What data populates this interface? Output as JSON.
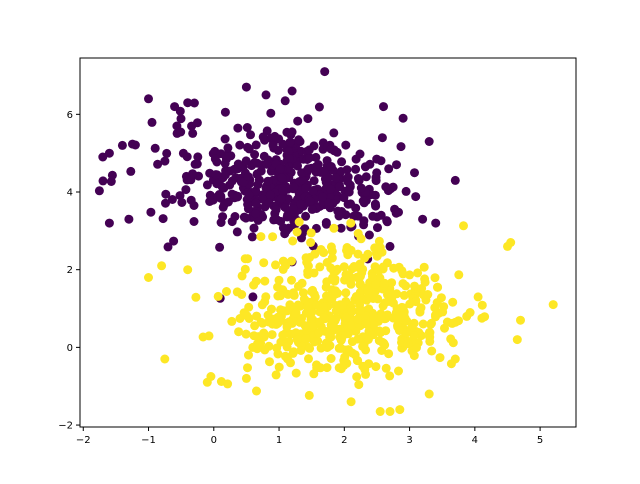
{
  "chart_data": {
    "type": "scatter",
    "title": "",
    "xlabel": "",
    "ylabel": "",
    "xlim": [
      -2.05,
      5.55
    ],
    "ylim": [
      -2.05,
      7.45
    ],
    "xticks": [
      -2,
      -1,
      0,
      1,
      2,
      3,
      4,
      5
    ],
    "yticks": [
      -2,
      0,
      2,
      4,
      6
    ],
    "grid": false,
    "legend": "none",
    "series": [
      {
        "color": "#440154",
        "clusters": [
          {
            "n": 240,
            "cx": 0.95,
            "cy": 4.2,
            "sx": 0.55,
            "sy": 0.7
          },
          {
            "n": 150,
            "cx": 1.9,
            "cy": 4.0,
            "sx": 0.5,
            "sy": 0.6
          },
          {
            "n": 90,
            "cx": 0.0,
            "cy": 4.6,
            "sx": 0.75,
            "sy": 0.8
          }
        ],
        "extra_points": [
          [
            -1.7,
            4.9
          ],
          [
            -1.6,
            5.0
          ],
          [
            -1.4,
            5.2
          ],
          [
            -1.6,
            3.2
          ],
          [
            -1.3,
            3.3
          ],
          [
            -1.0,
            6.4
          ],
          [
            -0.6,
            6.2
          ],
          [
            1.7,
            7.1
          ],
          [
            2.9,
            5.9
          ],
          [
            2.6,
            6.2
          ],
          [
            3.3,
            5.3
          ],
          [
            3.7,
            4.3
          ],
          [
            3.4,
            3.2
          ],
          [
            3.2,
            3.3
          ],
          [
            0.5,
            6.7
          ],
          [
            -0.4,
            6.3
          ],
          [
            0.8,
            6.5
          ],
          [
            1.2,
            6.6
          ],
          [
            2.7,
            2.6
          ],
          [
            1.2,
            2.2
          ],
          [
            0.6,
            1.3
          ],
          [
            2.1,
            3.1
          ]
        ]
      },
      {
        "color": "#fde725",
        "clusters": [
          {
            "n": 260,
            "cx": 2.1,
            "cy": 0.8,
            "sx": 0.55,
            "sy": 0.8
          },
          {
            "n": 130,
            "cx": 1.0,
            "cy": 0.6,
            "sx": 0.5,
            "sy": 0.7
          },
          {
            "n": 110,
            "cx": 3.0,
            "cy": 0.9,
            "sx": 0.5,
            "sy": 0.65
          },
          {
            "n": 40,
            "cx": 1.9,
            "cy": 2.4,
            "sx": 0.5,
            "sy": 0.4
          }
        ],
        "extra_points": [
          [
            5.2,
            1.1
          ],
          [
            4.7,
            0.7
          ],
          [
            4.55,
            2.7
          ],
          [
            4.5,
            2.6
          ],
          [
            4.65,
            0.2
          ],
          [
            -1.0,
            1.8
          ],
          [
            -0.75,
            -0.3
          ],
          [
            -0.4,
            2.0
          ],
          [
            -0.1,
            -0.9
          ],
          [
            2.55,
            -1.65
          ],
          [
            2.7,
            -1.65
          ],
          [
            4.05,
            1.3
          ],
          [
            3.7,
            -0.3
          ],
          [
            -0.8,
            2.1
          ],
          [
            0.5,
            -0.8
          ],
          [
            3.3,
            -1.2
          ],
          [
            2.1,
            3.2
          ]
        ]
      }
    ]
  }
}
